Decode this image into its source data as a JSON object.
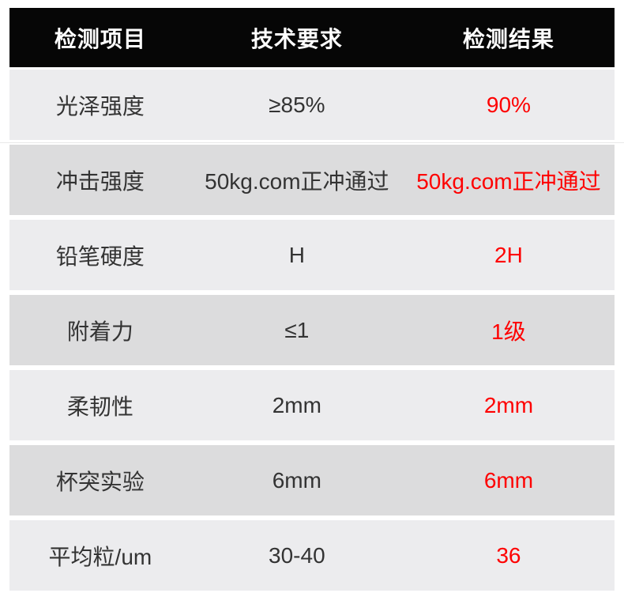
{
  "colors": {
    "header-bg": "#060606",
    "header-text": "#ffffff",
    "row-light": "#ececee",
    "row-dark": "#dcdcdd",
    "body-text": "#333333",
    "result-red": "#fe0000"
  },
  "table": {
    "headers": {
      "item": "检测项目",
      "requirement": "技术要求",
      "result": "检测结果"
    },
    "rows": [
      {
        "item": "光泽强度",
        "requirement": "≥85%",
        "result": "90%"
      },
      {
        "item": "冲击强度",
        "requirement": "50kg.com正冲通过",
        "result": "50kg.com正冲通过"
      },
      {
        "item": "铅笔硬度",
        "requirement": "H",
        "result": "2H"
      },
      {
        "item": "附着力",
        "requirement": "≤1",
        "result": "1级"
      },
      {
        "item": "柔韧性",
        "requirement": "2mm",
        "result": "2mm"
      },
      {
        "item": "杯突实验",
        "requirement": "6mm",
        "result": "6mm"
      },
      {
        "item": "平均粒/um",
        "requirement": "30-40",
        "result": "36"
      }
    ]
  }
}
